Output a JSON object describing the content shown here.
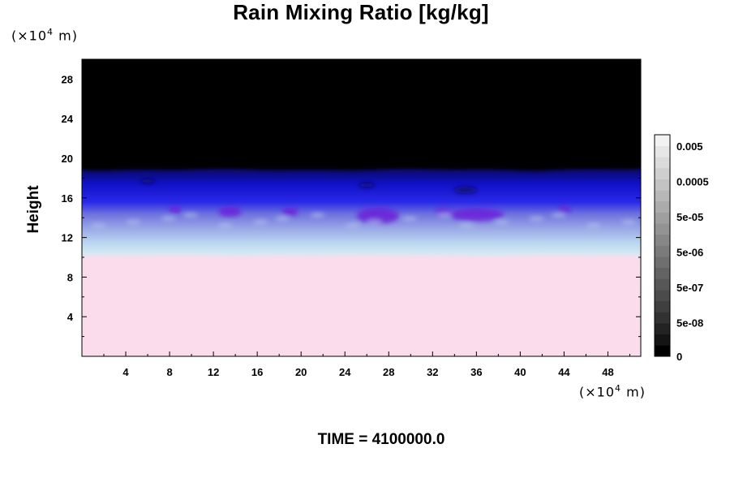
{
  "chart_data": {
    "type": "heatmap",
    "title": "Rain Mixing Ratio [kg/kg]",
    "ylabel": "Height",
    "x_unit_label": "(×10",
    "x_unit_exp": "4",
    "x_unit_suffix": " m)",
    "y_unit_label": "(×10",
    "y_unit_exp": "4",
    "y_unit_suffix": " m)",
    "xlim": [
      0,
      51
    ],
    "ylim": [
      0,
      30
    ],
    "x_ticks": [
      "4",
      "8",
      "12",
      "16",
      "20",
      "24",
      "28",
      "32",
      "36",
      "40",
      "44",
      "48"
    ],
    "y_ticks": [
      "4",
      "8",
      "12",
      "16",
      "20",
      "24",
      "28"
    ],
    "colorbar_labels": [
      "0.005",
      "0.0005",
      "5e-05",
      "5e-06",
      "5e-07",
      "5e-08",
      "0"
    ],
    "colorbar_colors": [
      "#000000",
      "#141414",
      "#232323",
      "#323232",
      "#3f3f3f",
      "#4b4b4b",
      "#575757",
      "#636363",
      "#6f6f6f",
      "#7b7b7b",
      "#878787",
      "#939393",
      "#9f9f9f",
      "#ababab",
      "#b7b7b7",
      "#c3c3c3",
      "#cfcfcf",
      "#dbdbdb",
      "#e6e6e6",
      "#f2f2f2"
    ],
    "layers": [
      {
        "name": "low",
        "color": "#fbdcec",
        "from_height": 0,
        "to_height": 10
      },
      {
        "name": "transition",
        "color": "#c8e2f0",
        "from_height": 10,
        "to_height": 13
      },
      {
        "name": "mid",
        "color": "#8e9ce6",
        "from_height": 13,
        "to_height": 15
      },
      {
        "name": "upper",
        "color": "#1d1de0",
        "from_height": 15,
        "to_height": 19
      },
      {
        "name": "top",
        "color": "#000000",
        "from_height": 19,
        "to_height": 30
      }
    ]
  },
  "footer": {
    "time_text": "TIME = 4100000.0"
  }
}
